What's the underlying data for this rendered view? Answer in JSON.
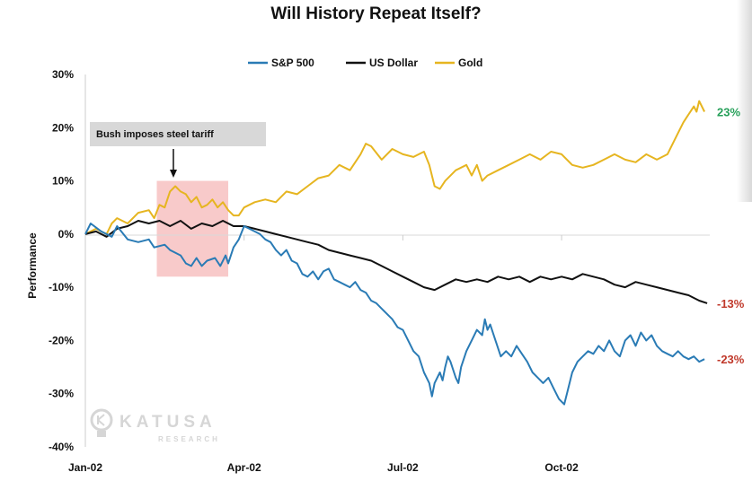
{
  "chart_data": {
    "type": "line",
    "title": "Will History Repeat Itself?",
    "ylabel": "Performance",
    "xlabel": "",
    "ylim": [
      -40,
      30
    ],
    "y_ticks": [
      "30%",
      "20%",
      "10%",
      "0%",
      "-10%",
      "-20%",
      "-30%",
      "-40%"
    ],
    "x_ticks": [
      "Jan-02",
      "Apr-02",
      "Jul-02",
      "Oct-02"
    ],
    "x_domain_months": [
      0,
      11.8
    ],
    "x_tick_months": [
      0,
      3,
      6,
      9
    ],
    "grid": false,
    "legend_position": "top",
    "series": [
      {
        "name": "S&P 500",
        "color": "#2a7bb5",
        "end_label": "-23%",
        "end_label_color": "#c0392b",
        "points": [
          [
            0,
            0
          ],
          [
            0.1,
            2
          ],
          [
            0.3,
            0.5
          ],
          [
            0.5,
            -0.5
          ],
          [
            0.6,
            1.5
          ],
          [
            0.8,
            -1
          ],
          [
            1.0,
            -1.5
          ],
          [
            1.2,
            -1
          ],
          [
            1.3,
            -2.5
          ],
          [
            1.5,
            -2
          ],
          [
            1.6,
            -3
          ],
          [
            1.8,
            -4
          ],
          [
            1.9,
            -5.5
          ],
          [
            2.0,
            -6
          ],
          [
            2.1,
            -4.5
          ],
          [
            2.2,
            -6
          ],
          [
            2.3,
            -5
          ],
          [
            2.45,
            -4.5
          ],
          [
            2.55,
            -6
          ],
          [
            2.65,
            -4
          ],
          [
            2.7,
            -5.5
          ],
          [
            2.8,
            -2.5
          ],
          [
            2.9,
            -1
          ],
          [
            3.0,
            1.5
          ],
          [
            3.1,
            1
          ],
          [
            3.2,
            0.5
          ],
          [
            3.3,
            0
          ],
          [
            3.4,
            -1
          ],
          [
            3.5,
            -1.5
          ],
          [
            3.6,
            -3
          ],
          [
            3.7,
            -4
          ],
          [
            3.8,
            -3
          ],
          [
            3.9,
            -5
          ],
          [
            4.0,
            -5.5
          ],
          [
            4.1,
            -7.5
          ],
          [
            4.2,
            -8
          ],
          [
            4.3,
            -7
          ],
          [
            4.4,
            -8.5
          ],
          [
            4.5,
            -7
          ],
          [
            4.6,
            -6.5
          ],
          [
            4.7,
            -8.5
          ],
          [
            4.8,
            -9
          ],
          [
            4.9,
            -9.5
          ],
          [
            5.0,
            -10
          ],
          [
            5.1,
            -9
          ],
          [
            5.2,
            -10.5
          ],
          [
            5.3,
            -11
          ],
          [
            5.4,
            -12.5
          ],
          [
            5.5,
            -13
          ],
          [
            5.6,
            -14
          ],
          [
            5.7,
            -15
          ],
          [
            5.8,
            -16
          ],
          [
            5.9,
            -17.5
          ],
          [
            6.0,
            -18
          ],
          [
            6.1,
            -20
          ],
          [
            6.2,
            -22
          ],
          [
            6.3,
            -23
          ],
          [
            6.4,
            -26
          ],
          [
            6.5,
            -28
          ],
          [
            6.55,
            -30.5
          ],
          [
            6.6,
            -28
          ],
          [
            6.7,
            -26
          ],
          [
            6.75,
            -27.5
          ],
          [
            6.8,
            -25
          ],
          [
            6.85,
            -23
          ],
          [
            6.9,
            -24
          ],
          [
            7.0,
            -27
          ],
          [
            7.05,
            -28
          ],
          [
            7.1,
            -25
          ],
          [
            7.2,
            -22
          ],
          [
            7.3,
            -20
          ],
          [
            7.4,
            -18
          ],
          [
            7.5,
            -19
          ],
          [
            7.55,
            -16
          ],
          [
            7.6,
            -18
          ],
          [
            7.65,
            -17
          ],
          [
            7.75,
            -20
          ],
          [
            7.85,
            -23
          ],
          [
            7.95,
            -22
          ],
          [
            8.05,
            -23
          ],
          [
            8.15,
            -21
          ],
          [
            8.25,
            -22.5
          ],
          [
            8.35,
            -24
          ],
          [
            8.45,
            -26
          ],
          [
            8.55,
            -27
          ],
          [
            8.65,
            -28
          ],
          [
            8.75,
            -27
          ],
          [
            8.85,
            -29
          ],
          [
            8.95,
            -31
          ],
          [
            9.05,
            -32
          ],
          [
            9.1,
            -30
          ],
          [
            9.2,
            -26
          ],
          [
            9.3,
            -24
          ],
          [
            9.4,
            -23
          ],
          [
            9.5,
            -22
          ],
          [
            9.6,
            -22.5
          ],
          [
            9.7,
            -21
          ],
          [
            9.8,
            -22
          ],
          [
            9.9,
            -20
          ],
          [
            10.0,
            -22
          ],
          [
            10.1,
            -23
          ],
          [
            10.2,
            -20
          ],
          [
            10.3,
            -19
          ],
          [
            10.4,
            -21
          ],
          [
            10.5,
            -18.5
          ],
          [
            10.6,
            -20
          ],
          [
            10.7,
            -19
          ],
          [
            10.8,
            -21
          ],
          [
            10.9,
            -22
          ],
          [
            11.0,
            -22.5
          ],
          [
            11.1,
            -23
          ],
          [
            11.2,
            -22
          ],
          [
            11.3,
            -23
          ],
          [
            11.4,
            -23.5
          ],
          [
            11.5,
            -23
          ],
          [
            11.6,
            -24
          ],
          [
            11.7,
            -23.5
          ]
        ]
      },
      {
        "name": "US Dollar",
        "color": "#111111",
        "end_label": "-13%",
        "end_label_color": "#c0392b",
        "points": [
          [
            0,
            0
          ],
          [
            0.2,
            0.5
          ],
          [
            0.4,
            -0.5
          ],
          [
            0.6,
            1
          ],
          [
            0.8,
            1.5
          ],
          [
            1.0,
            2.5
          ],
          [
            1.2,
            2
          ],
          [
            1.4,
            2.5
          ],
          [
            1.6,
            1.5
          ],
          [
            1.8,
            2.5
          ],
          [
            2.0,
            1
          ],
          [
            2.2,
            2
          ],
          [
            2.4,
            1.5
          ],
          [
            2.6,
            2.5
          ],
          [
            2.8,
            1.5
          ],
          [
            3.0,
            1.5
          ],
          [
            3.2,
            1
          ],
          [
            3.4,
            0.5
          ],
          [
            3.6,
            0
          ],
          [
            3.8,
            -0.5
          ],
          [
            4.0,
            -1
          ],
          [
            4.2,
            -1.5
          ],
          [
            4.4,
            -2
          ],
          [
            4.6,
            -3
          ],
          [
            4.8,
            -3.5
          ],
          [
            5.0,
            -4
          ],
          [
            5.2,
            -4.5
          ],
          [
            5.4,
            -5
          ],
          [
            5.6,
            -6
          ],
          [
            5.8,
            -7
          ],
          [
            6.0,
            -8
          ],
          [
            6.2,
            -9
          ],
          [
            6.4,
            -10
          ],
          [
            6.6,
            -10.5
          ],
          [
            6.8,
            -9.5
          ],
          [
            7.0,
            -8.5
          ],
          [
            7.2,
            -9
          ],
          [
            7.4,
            -8.5
          ],
          [
            7.6,
            -9
          ],
          [
            7.8,
            -8
          ],
          [
            8.0,
            -8.5
          ],
          [
            8.2,
            -8
          ],
          [
            8.4,
            -9
          ],
          [
            8.6,
            -8
          ],
          [
            8.8,
            -8.5
          ],
          [
            9.0,
            -8
          ],
          [
            9.2,
            -8.5
          ],
          [
            9.4,
            -7.5
          ],
          [
            9.6,
            -8
          ],
          [
            9.8,
            -8.5
          ],
          [
            10.0,
            -9.5
          ],
          [
            10.2,
            -10
          ],
          [
            10.4,
            -9
          ],
          [
            10.6,
            -9.5
          ],
          [
            10.8,
            -10
          ],
          [
            11.0,
            -10.5
          ],
          [
            11.2,
            -11
          ],
          [
            11.4,
            -11.5
          ],
          [
            11.6,
            -12.5
          ],
          [
            11.75,
            -13
          ]
        ]
      },
      {
        "name": "Gold",
        "color": "#e6b520",
        "end_label": "23%",
        "end_label_color": "#27a05a",
        "points": [
          [
            0,
            0
          ],
          [
            0.2,
            1
          ],
          [
            0.4,
            0
          ],
          [
            0.5,
            2
          ],
          [
            0.6,
            3
          ],
          [
            0.8,
            2
          ],
          [
            1.0,
            4
          ],
          [
            1.2,
            4.5
          ],
          [
            1.3,
            3
          ],
          [
            1.4,
            5.5
          ],
          [
            1.5,
            5
          ],
          [
            1.6,
            8
          ],
          [
            1.7,
            9
          ],
          [
            1.8,
            8
          ],
          [
            1.9,
            7.5
          ],
          [
            2.0,
            6
          ],
          [
            2.1,
            7
          ],
          [
            2.2,
            5
          ],
          [
            2.3,
            5.5
          ],
          [
            2.4,
            6.5
          ],
          [
            2.5,
            5
          ],
          [
            2.6,
            6
          ],
          [
            2.7,
            4.5
          ],
          [
            2.8,
            3.5
          ],
          [
            2.9,
            3.5
          ],
          [
            3.0,
            5
          ],
          [
            3.2,
            6
          ],
          [
            3.4,
            6.5
          ],
          [
            3.6,
            6
          ],
          [
            3.8,
            8
          ],
          [
            4.0,
            7.5
          ],
          [
            4.2,
            9
          ],
          [
            4.4,
            10.5
          ],
          [
            4.6,
            11
          ],
          [
            4.8,
            13
          ],
          [
            5.0,
            12
          ],
          [
            5.2,
            15
          ],
          [
            5.3,
            17
          ],
          [
            5.4,
            16.5
          ],
          [
            5.6,
            14
          ],
          [
            5.8,
            16
          ],
          [
            6.0,
            15
          ],
          [
            6.2,
            14.5
          ],
          [
            6.4,
            15.5
          ],
          [
            6.5,
            13
          ],
          [
            6.6,
            9
          ],
          [
            6.7,
            8.5
          ],
          [
            6.8,
            10
          ],
          [
            7.0,
            12
          ],
          [
            7.2,
            13
          ],
          [
            7.3,
            11
          ],
          [
            7.4,
            13
          ],
          [
            7.5,
            10
          ],
          [
            7.6,
            11
          ],
          [
            7.8,
            12
          ],
          [
            8.0,
            13
          ],
          [
            8.2,
            14
          ],
          [
            8.4,
            15
          ],
          [
            8.6,
            14
          ],
          [
            8.8,
            15.5
          ],
          [
            9.0,
            15
          ],
          [
            9.2,
            13
          ],
          [
            9.4,
            12.5
          ],
          [
            9.6,
            13
          ],
          [
            9.8,
            14
          ],
          [
            10.0,
            15
          ],
          [
            10.2,
            14
          ],
          [
            10.4,
            13.5
          ],
          [
            10.6,
            15
          ],
          [
            10.8,
            14
          ],
          [
            11.0,
            15
          ],
          [
            11.1,
            17
          ],
          [
            11.2,
            19
          ],
          [
            11.3,
            21
          ],
          [
            11.4,
            22.5
          ],
          [
            11.5,
            24
          ],
          [
            11.55,
            23
          ],
          [
            11.6,
            25
          ],
          [
            11.7,
            23
          ]
        ]
      }
    ],
    "annotation": {
      "text": "Bush imposes steel tariff",
      "highlight_months": [
        1.35,
        2.7
      ],
      "highlight_range": [
        -8,
        10
      ]
    }
  },
  "watermark": {
    "text": "KATUSA",
    "subtext": "RESEARCH"
  }
}
